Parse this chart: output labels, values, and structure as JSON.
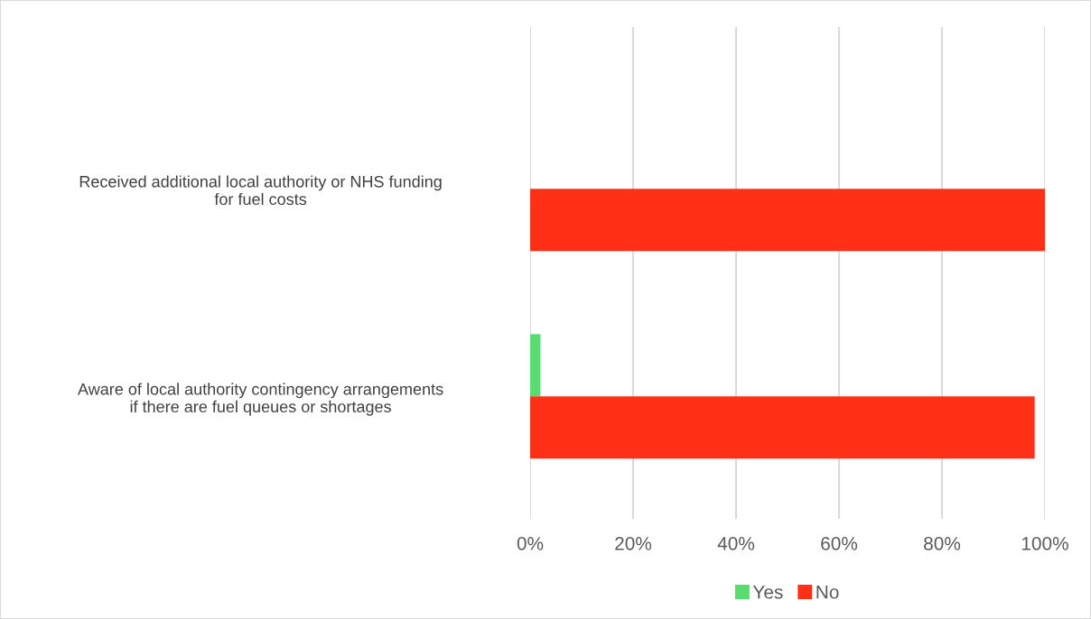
{
  "chart_data": {
    "type": "bar",
    "orientation": "horizontal",
    "categories": [
      "Received additional local authority or NHS funding\nfor fuel costs",
      "Aware of local authority contingency arrangements\nif there are fuel queues or shortages"
    ],
    "series": [
      {
        "name": "Yes",
        "color": "#57dc71",
        "values": [
          0,
          2
        ]
      },
      {
        "name": "No",
        "color": "#ff3015",
        "values": [
          100,
          98
        ]
      }
    ],
    "xlim": [
      0,
      100
    ],
    "xticks": [
      {
        "value": 0,
        "label": "0%"
      },
      {
        "value": 20,
        "label": "20%"
      },
      {
        "value": 40,
        "label": "40%"
      },
      {
        "value": 60,
        "label": "60%"
      },
      {
        "value": 80,
        "label": "80%"
      },
      {
        "value": 100,
        "label": "100%"
      }
    ],
    "grid": "x",
    "legend": "bottom"
  }
}
